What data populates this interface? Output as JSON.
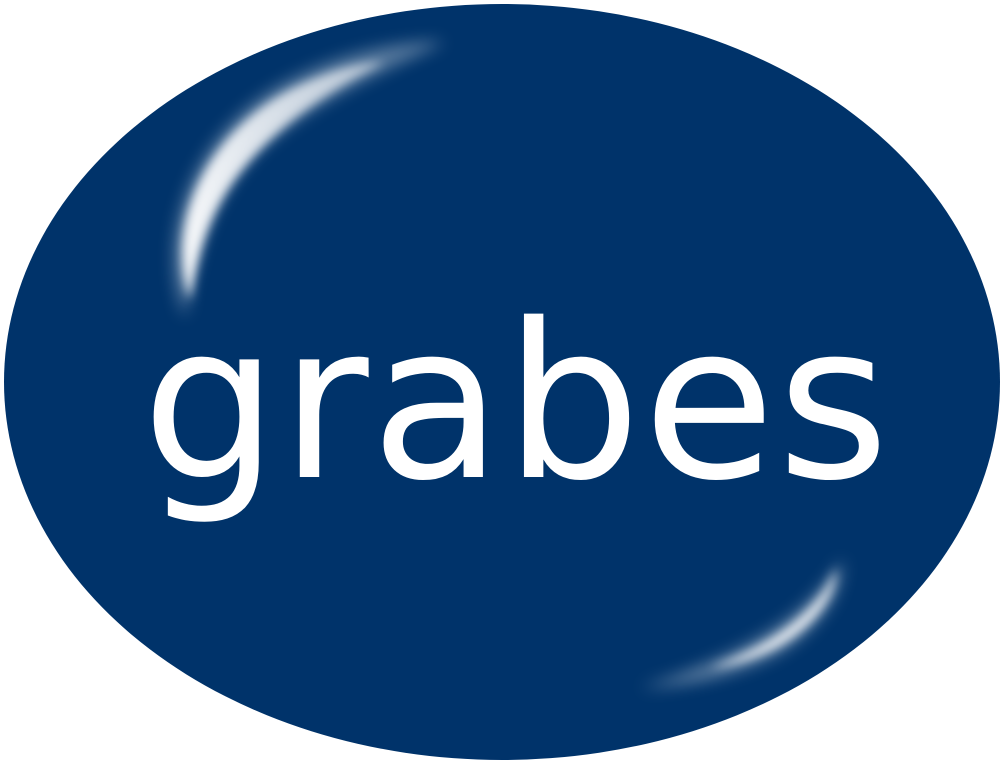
{
  "logo": {
    "text": "grabes",
    "background_color": "#00336a",
    "text_color": "#ffffff",
    "highlight_color": "#ffffff"
  }
}
